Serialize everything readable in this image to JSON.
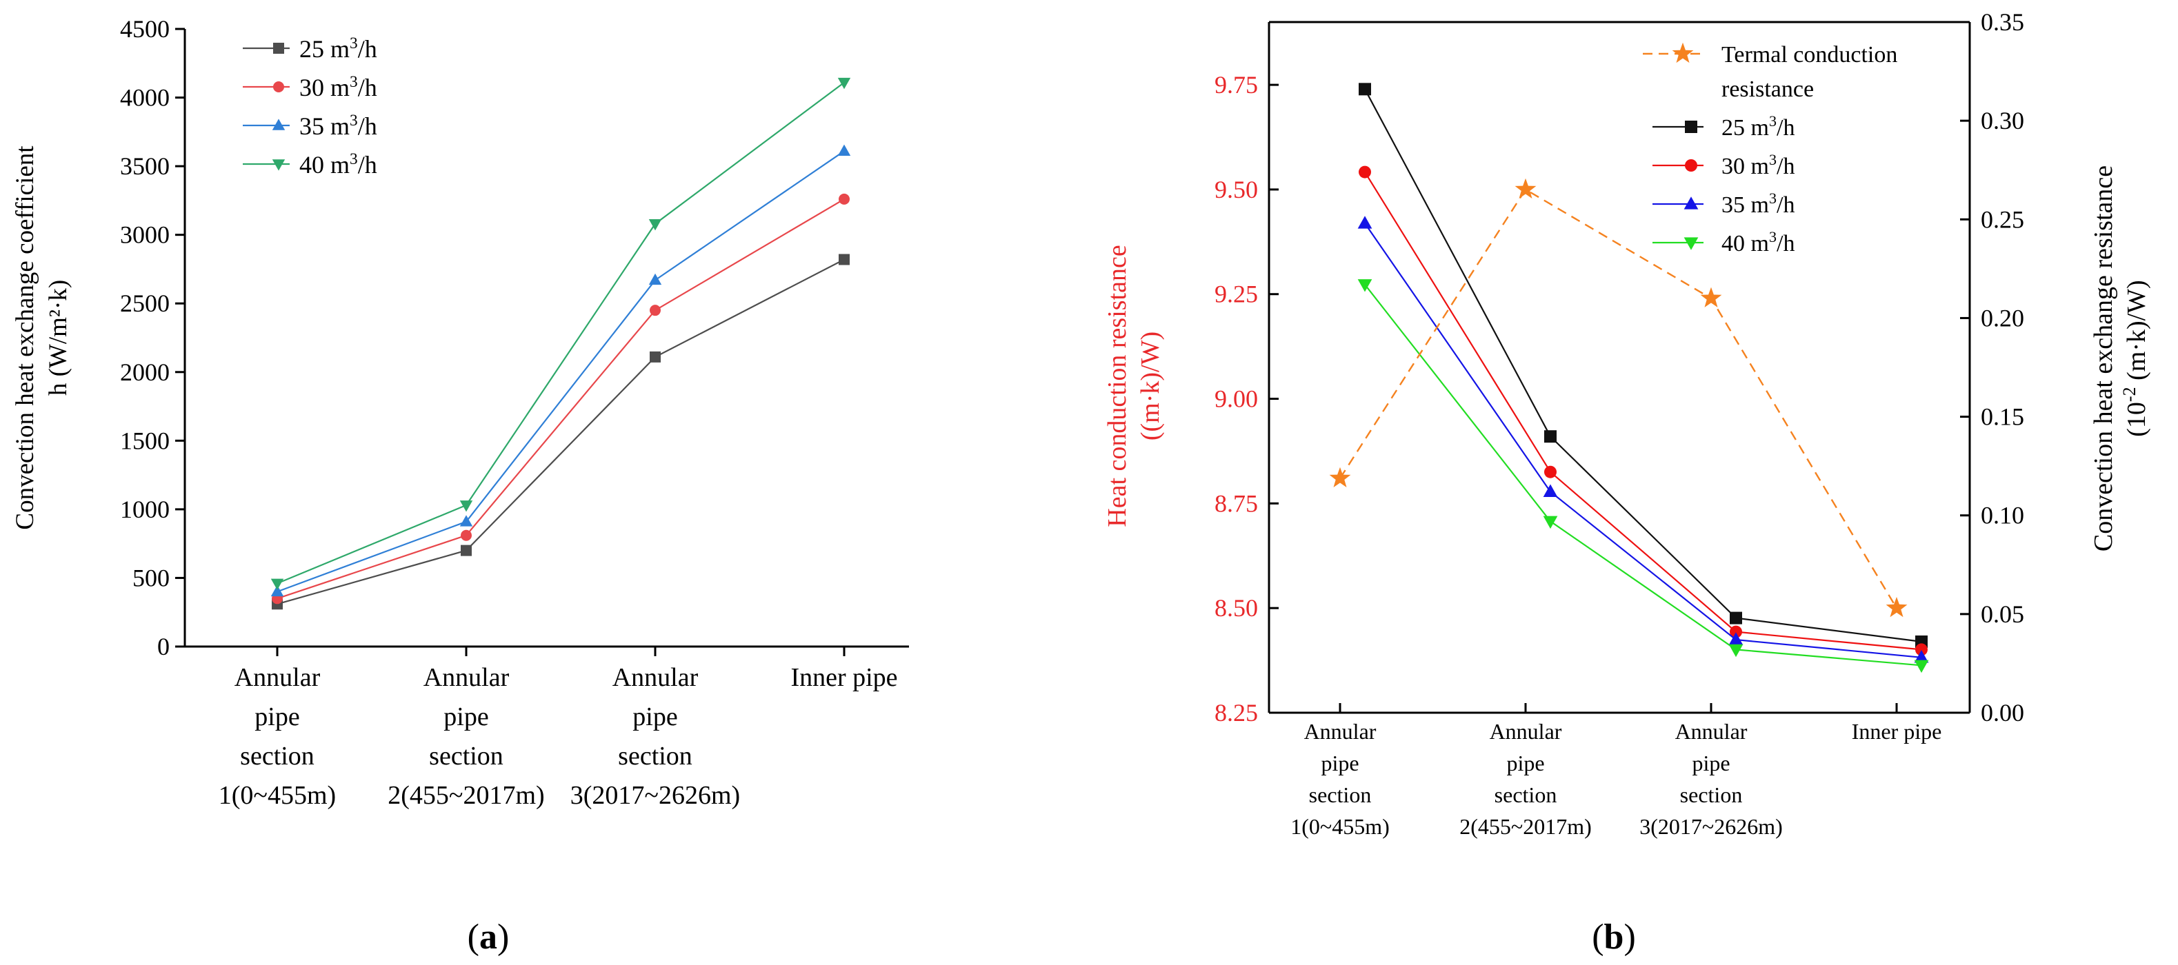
{
  "panels": {
    "a": {
      "caption_open": "(",
      "caption_letter": "a",
      "caption_close": ")"
    },
    "b": {
      "caption_open": "(",
      "caption_letter": "b",
      "caption_close": ")"
    }
  },
  "chart_data": [
    {
      "id": "a",
      "type": "line",
      "title": "",
      "ylabel_line1": "Convection heat exchange coefficient",
      "ylabel_line2": "h (W/m²·k)",
      "xlabel": "",
      "ylim": [
        0,
        4500
      ],
      "yticks": [
        "0",
        "500",
        "1000",
        "1500",
        "2000",
        "2500",
        "3000",
        "3500",
        "4000",
        "4500"
      ],
      "categories": [
        [
          "Annular",
          "pipe",
          "section",
          "1(0~455m)"
        ],
        [
          "Annular",
          "pipe",
          "section",
          "2(455~2017m)"
        ],
        [
          "Annular",
          "pipe",
          "section",
          "3(2017~2626m)"
        ],
        [
          "Inner pipe"
        ]
      ],
      "legend_position": "top-left",
      "series": [
        {
          "name": "25 m",
          "sup": "3",
          "unit_tail": "/h",
          "color": "#4d4d4d",
          "marker": "square",
          "values": [
            310,
            700,
            2110,
            2820
          ]
        },
        {
          "name": "30 m",
          "sup": "3",
          "unit_tail": "/h",
          "color": "#e8474b",
          "marker": "circle",
          "values": [
            350,
            810,
            2450,
            3260
          ]
        },
        {
          "name": "35 m",
          "sup": "3",
          "unit_tail": "/h",
          "color": "#2f7fd6",
          "marker": "triangle-up",
          "values": [
            400,
            910,
            2670,
            3610
          ]
        },
        {
          "name": "40 m",
          "sup": "3",
          "unit_tail": "/h",
          "color": "#2ea86a",
          "marker": "triangle-down",
          "values": [
            460,
            1030,
            3080,
            4110
          ]
        }
      ]
    },
    {
      "id": "b",
      "type": "line",
      "title": "",
      "ylabel_left_line1": "Heat conduction resistance",
      "ylabel_left_line2": "((m·k)/W)",
      "ylabel_right_line1": "Convection heat exchange resistance",
      "ylabel_right_line2_pre": "(10",
      "ylabel_right_line2_sup": "-2",
      "ylabel_right_line2_post": " (m·k)/W)",
      "left_color": "#e8282a",
      "ylim_left": [
        8.25,
        9.9
      ],
      "yticks_left": [
        "8.25",
        "8.50",
        "8.75",
        "9.00",
        "9.25",
        "9.50",
        "9.75"
      ],
      "ylim_right": [
        0.0,
        0.35
      ],
      "yticks_right": [
        "0.00",
        "0.05",
        "0.10",
        "0.15",
        "0.20",
        "0.25",
        "0.30",
        "0.35"
      ],
      "categories": [
        [
          "Annular",
          "pipe",
          "section",
          "1(0~455m)"
        ],
        [
          "Annular",
          "pipe",
          "section",
          "2(455~2017m)"
        ],
        [
          "Annular",
          "pipe",
          "section",
          "3(2017~2626m)"
        ],
        [
          "Inner pipe"
        ]
      ],
      "legend_position": "top-right",
      "left_series": {
        "name_line1": "Termal conduction",
        "name_line2": "resistance",
        "color": "#f5821f",
        "marker": "star",
        "style": "dashed",
        "values": [
          8.81,
          9.5,
          9.24,
          8.5
        ]
      },
      "series": [
        {
          "name": "25 m",
          "sup": "3",
          "unit_tail": "/h",
          "color": "#111111",
          "marker": "square",
          "values": [
            0.316,
            0.14,
            0.048,
            0.036
          ]
        },
        {
          "name": "30 m",
          "sup": "3",
          "unit_tail": "/h",
          "color": "#ee1111",
          "marker": "circle",
          "values": [
            0.274,
            0.122,
            0.041,
            0.032
          ]
        },
        {
          "name": "35 m",
          "sup": "3",
          "unit_tail": "/h",
          "color": "#1414e6",
          "marker": "triangle-up",
          "values": [
            0.248,
            0.112,
            0.037,
            0.028
          ]
        },
        {
          "name": "40 m",
          "sup": "3",
          "unit_tail": "/h",
          "color": "#22dd22",
          "marker": "triangle-down",
          "values": [
            0.217,
            0.097,
            0.032,
            0.024
          ]
        }
      ]
    }
  ]
}
